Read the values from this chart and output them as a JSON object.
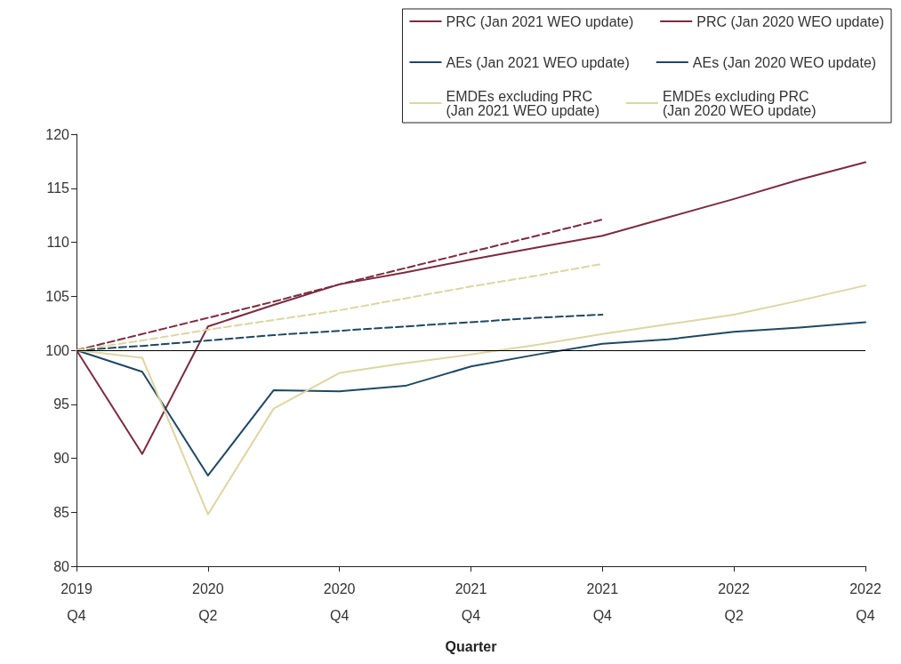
{
  "chart_data": {
    "type": "line",
    "xlabel": "Quarter",
    "categories": [
      "2019\nQ4",
      null,
      "2020\nQ2",
      null,
      "2020\nQ4",
      null,
      "2021\nQ4",
      null,
      "2021\nQ4",
      null,
      "2022\nQ2",
      null,
      "2022\nQ4"
    ],
    "series": [
      {
        "name": "PRC (Jan 2021 WEO update)",
        "color": "#7b2c3f",
        "line_style": "solid",
        "values": [
          100,
          90.4,
          102.2,
          104.2,
          106.1,
          107.2,
          108.4,
          109.5,
          110.6,
          112.3,
          114.0,
          115.8,
          117.4
        ]
      },
      {
        "name": "PRC (Jan 2020 WEO update)",
        "color": "#7b2c3f",
        "line_style": "dashed",
        "values": [
          100,
          101.5,
          103.0,
          104.5,
          106.1,
          107.6,
          109.1,
          110.6,
          112.1,
          null,
          null,
          null,
          null
        ]
      },
      {
        "name": "AEs (Jan 2021 WEO update)",
        "color": "#1f4863",
        "line_style": "solid",
        "values": [
          100,
          98.0,
          88.4,
          96.3,
          96.2,
          96.7,
          98.5,
          99.6,
          100.6,
          101.0,
          101.7,
          102.1,
          102.6
        ]
      },
      {
        "name": "AEs (Jan 2020 WEO update)",
        "color": "#1f4863",
        "line_style": "dashed",
        "values": [
          100,
          100.4,
          100.9,
          101.4,
          101.8,
          102.2,
          102.6,
          103.0,
          103.3,
          null,
          null,
          null,
          null
        ]
      },
      {
        "name": "EMDEs excluding PRC\n(Jan 2021 WEO update)",
        "color": "#ddd5a3",
        "line_style": "solid",
        "values": [
          100,
          99.3,
          84.8,
          94.6,
          97.9,
          98.8,
          99.6,
          100.5,
          101.5,
          102.4,
          103.3,
          104.6,
          106.0
        ]
      },
      {
        "name": "EMDEs excluding PRC\n(Jan 2020 WEO update)",
        "color": "#ddd5a3",
        "line_style": "dashed",
        "values": [
          100,
          100.9,
          101.9,
          102.8,
          103.7,
          104.8,
          105.9,
          106.9,
          108.0,
          null,
          null,
          null,
          null
        ]
      }
    ],
    "ylim": [
      80,
      120
    ],
    "yticks": [
      80,
      85,
      90,
      95,
      100,
      105,
      110,
      115,
      120
    ],
    "ref_lines": [
      {
        "axis": "y",
        "value": 100,
        "color": "#000000"
      }
    ],
    "grid": false,
    "legend": "top right",
    "marker": "none"
  }
}
